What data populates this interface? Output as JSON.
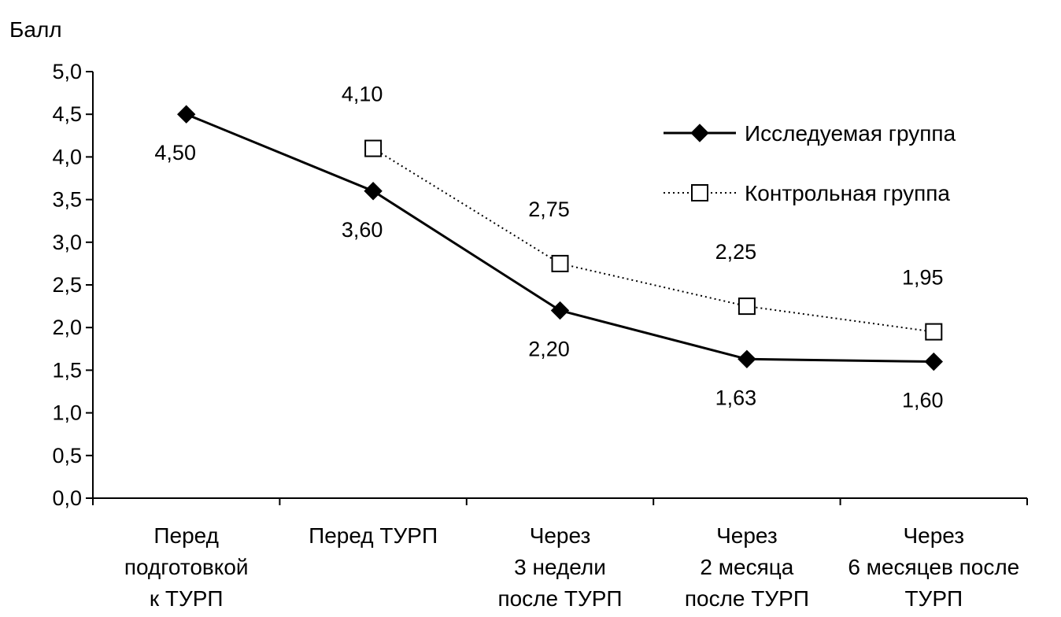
{
  "chart_data": {
    "type": "line",
    "title": "",
    "ylabel": "Балл",
    "xlabel": "",
    "ylim": [
      0,
      5
    ],
    "ytick_step": 0.5,
    "ytick_labels": [
      "0,0",
      "0,5",
      "1,0",
      "1,5",
      "2,0",
      "2,5",
      "3,0",
      "3,5",
      "4,0",
      "4,5",
      "5,0"
    ],
    "categories": [
      [
        "Перед",
        "подготовкой",
        "к ТУРП"
      ],
      [
        "Перед ТУРП"
      ],
      [
        "Через",
        "3 недели",
        "после ТУРП"
      ],
      [
        "Через",
        "2 месяца",
        "после ТУРП"
      ],
      [
        "Через",
        "6 месяцев после",
        "ТУРП"
      ]
    ],
    "legend_position": "top-right",
    "grid": false,
    "series": [
      {
        "name": "Исследуемая группа",
        "marker": "diamond-filled",
        "line": "solid",
        "color": "#000000",
        "label_position": "below",
        "values": [
          4.5,
          3.6,
          2.2,
          1.63,
          1.6
        ],
        "labels": [
          "4,50",
          "3,60",
          "2,20",
          "1,63",
          "1,60"
        ]
      },
      {
        "name": "Контрольная группа",
        "marker": "square-open",
        "line": "dotted",
        "color": "#000000",
        "label_position": "above",
        "values": [
          null,
          4.1,
          2.75,
          2.25,
          1.95
        ],
        "labels": [
          null,
          "4,10",
          "2,75",
          "2,25",
          "1,95"
        ]
      }
    ]
  }
}
